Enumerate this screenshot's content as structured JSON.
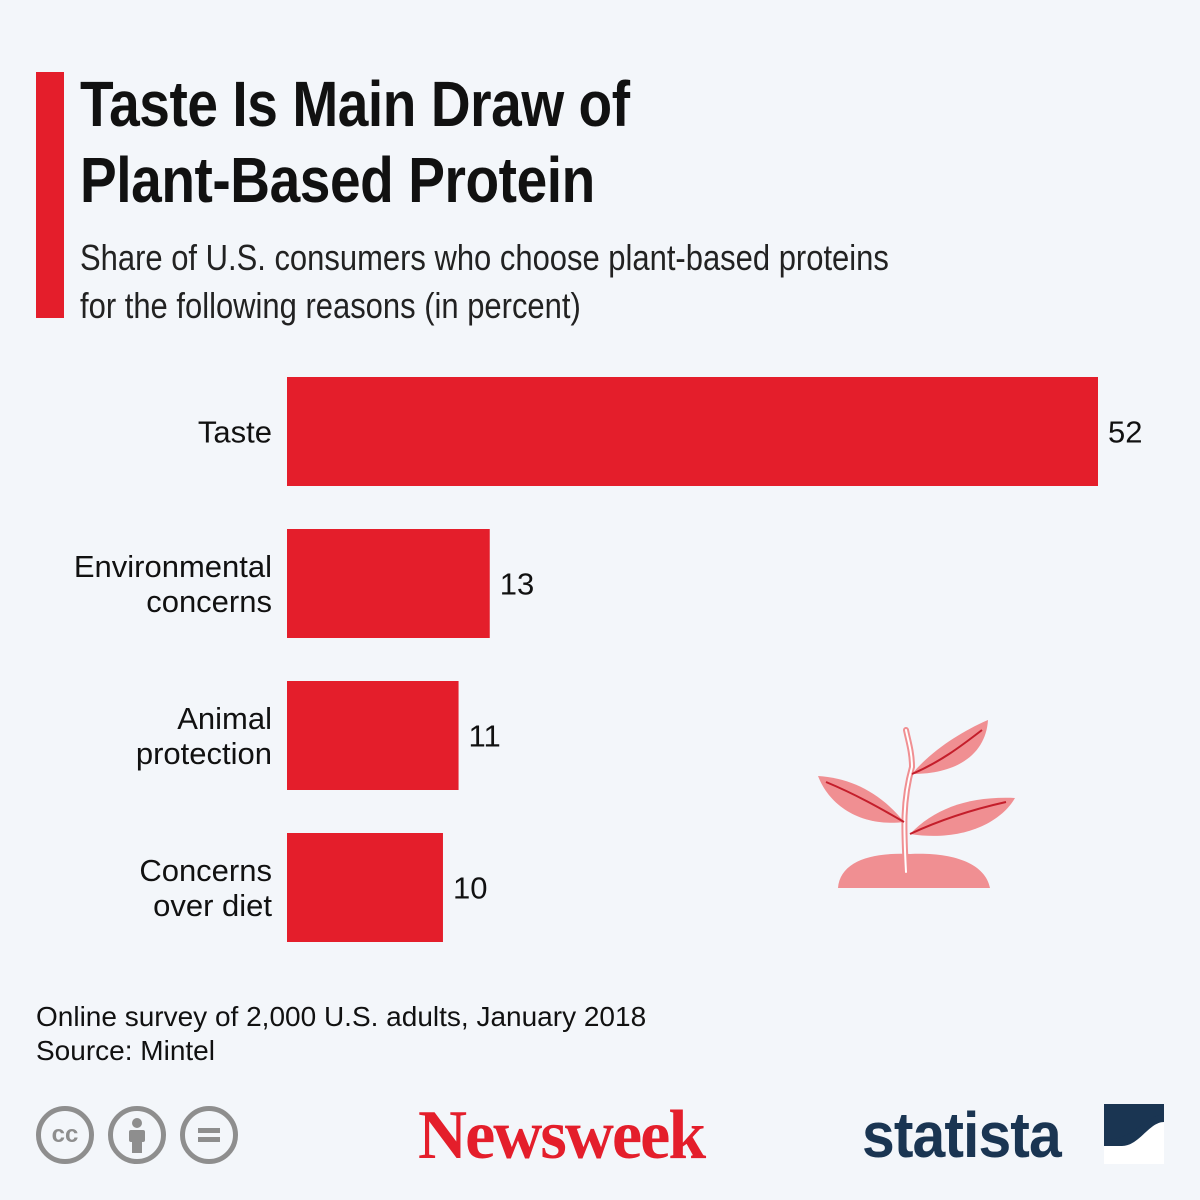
{
  "title": {
    "line1": "Taste Is Main Draw of",
    "line2": "Plant-Based Protein"
  },
  "subtitle": {
    "line1": "Share of U.S. consumers who choose plant-based proteins",
    "line2": "for the following reasons (in percent)"
  },
  "colors": {
    "accent": "#e41e2b",
    "background": "#f3f6fa",
    "plant": "#f08f92",
    "statista": "#1a3552"
  },
  "chart_data": {
    "type": "bar",
    "orientation": "horizontal",
    "categories": [
      [
        "Taste"
      ],
      [
        "Environmental",
        "concerns"
      ],
      [
        "Animal",
        "protection"
      ],
      [
        "Concerns",
        "over diet"
      ]
    ],
    "values": [
      52,
      13,
      11,
      10
    ],
    "xlim": [
      0,
      52
    ],
    "grid": false,
    "legend": "none"
  },
  "notes": {
    "line1": "Online survey of 2,000 U.S. adults, January 2018",
    "line2": "Source: Mintel"
  },
  "licenses": [
    {
      "icon": "cc-icon",
      "glyph": "cc"
    },
    {
      "icon": "attribution-icon",
      "glyph": ""
    },
    {
      "icon": "no-derivatives-icon",
      "glyph": ""
    }
  ],
  "branding": {
    "newsweek": "Newsweek",
    "statista": "statista"
  }
}
